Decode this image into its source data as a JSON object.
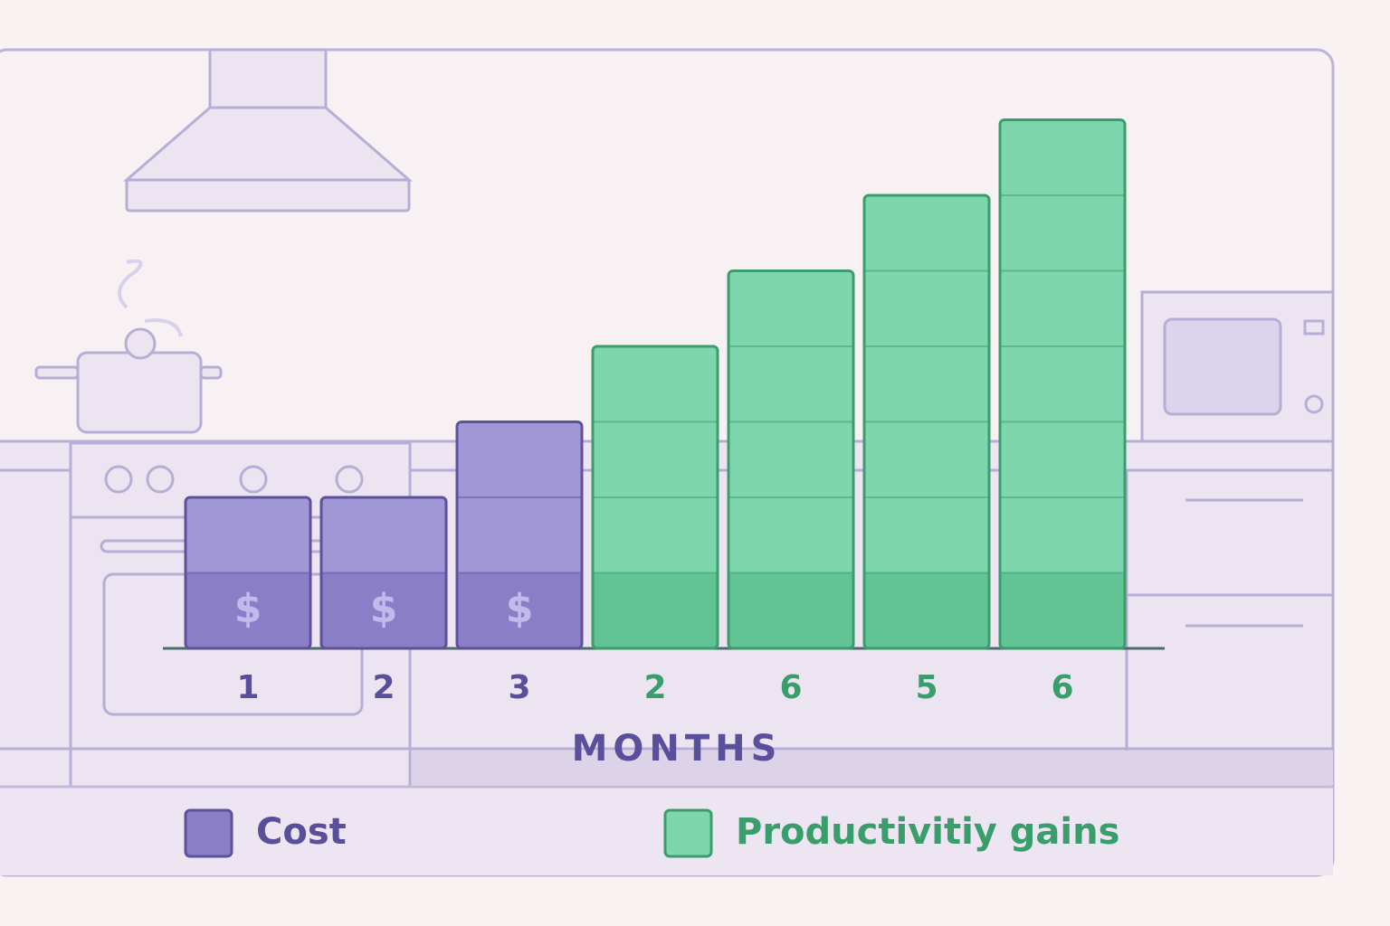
{
  "chart_data": {
    "type": "bar",
    "categories": [
      "1",
      "2",
      "3",
      "2",
      "6",
      "5",
      "6"
    ],
    "series": [
      {
        "name": "Cost",
        "color": "#a197d6",
        "symbol": "$",
        "values": [
          2,
          2,
          3,
          null,
          null,
          null,
          null
        ]
      },
      {
        "name": "Productivitiy gains",
        "color": "#7dd6ad",
        "values": [
          null,
          null,
          null,
          4,
          5,
          6,
          7
        ]
      }
    ],
    "x_label": "MONTHS"
  }
}
